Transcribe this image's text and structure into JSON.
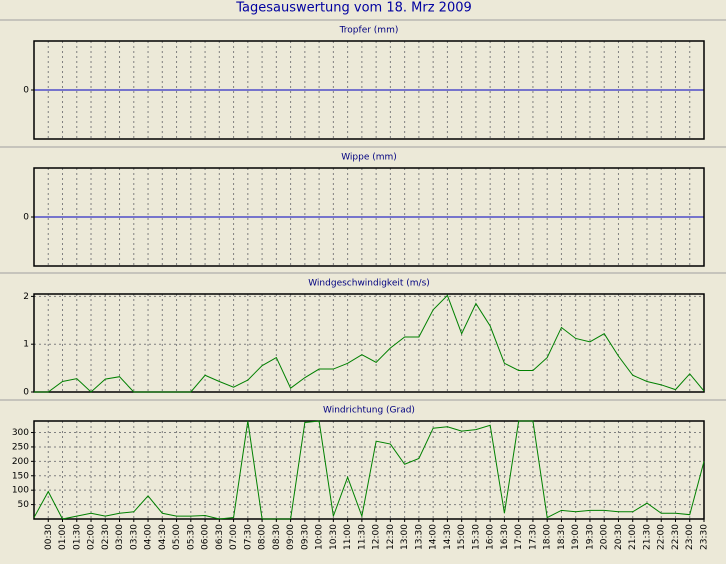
{
  "title": "Tagesauswertung vom 18. Mrz 2009",
  "chart_data": [
    {
      "type": "line",
      "title": "Tropfer (mm)",
      "xlim": [
        0,
        23.5
      ],
      "ylim": [
        -1,
        1
      ],
      "yticks": [
        0
      ],
      "zero_color": "#0000c0"
    },
    {
      "type": "line",
      "title": "Wippe (mm)",
      "xlim": [
        0,
        23.5
      ],
      "ylim": [
        -1,
        1
      ],
      "yticks": [
        0
      ],
      "zero_color": "#0000c0"
    },
    {
      "type": "line",
      "title": "Windgeschwindigkeit (m/s)",
      "xlim": [
        0,
        23.5
      ],
      "ylim": [
        0,
        2.05
      ],
      "yticks": [
        0,
        1,
        2
      ],
      "grid": true,
      "x": [
        0,
        0.5,
        1,
        1.5,
        2,
        2.5,
        3,
        3.5,
        4,
        4.5,
        5,
        5.5,
        6,
        6.5,
        7,
        7.5,
        8,
        8.5,
        9,
        9.5,
        10,
        10.5,
        11,
        11.5,
        12,
        12.5,
        13,
        13.5,
        14,
        14.5,
        15,
        15.5,
        16,
        16.5,
        17,
        17.5,
        18,
        18.5,
        19,
        19.5,
        20,
        20.5,
        21,
        21.5,
        22,
        22.5,
        23,
        23.5
      ],
      "series": [
        {
          "color": "#008000",
          "values": [
            0,
            0,
            0.22,
            0.28,
            0,
            0.27,
            0.32,
            0,
            0,
            0,
            0,
            0,
            0.35,
            0.22,
            0.1,
            0.25,
            0.55,
            0.72,
            0.08,
            0.3,
            0.48,
            0.48,
            0.6,
            0.78,
            0.62,
            0.92,
            1.15,
            1.15,
            1.72,
            2.02,
            1.22,
            1.85,
            1.38,
            0.6,
            0.45,
            0.45,
            0.72,
            1.35,
            1.12,
            1.05,
            1.22,
            0.75,
            0.35,
            0.22,
            0.15,
            0.05,
            0.38,
            0.02
          ]
        }
      ]
    },
    {
      "type": "line",
      "title": "Windrichtung (Grad)",
      "xlim": [
        0,
        23.5
      ],
      "ylim": [
        0,
        340
      ],
      "yticks": [
        50,
        100,
        150,
        200,
        250,
        300
      ],
      "grid": true,
      "x": [
        0,
        0.5,
        1,
        1.5,
        2,
        2.5,
        3,
        3.5,
        4,
        4.5,
        5,
        5.5,
        6,
        6.5,
        7,
        7.5,
        8,
        8.5,
        9,
        9.5,
        10,
        10.5,
        11,
        11.5,
        12,
        12.5,
        13,
        13.5,
        14,
        14.5,
        15,
        15.5,
        16,
        16.5,
        17,
        17.5,
        18,
        18.5,
        19,
        19.5,
        20,
        20.5,
        21,
        21.5,
        22,
        22.5,
        23,
        23.5
      ],
      "series": [
        {
          "color": "#008000",
          "values": [
            5,
            95,
            0,
            10,
            20,
            10,
            20,
            25,
            80,
            20,
            10,
            10,
            12,
            0,
            5,
            340,
            0,
            0,
            0,
            335,
            340,
            10,
            145,
            10,
            270,
            260,
            190,
            210,
            315,
            320,
            305,
            310,
            325,
            20,
            340,
            340,
            5,
            30,
            25,
            30,
            30,
            25,
            25,
            55,
            20,
            20,
            15,
            200
          ]
        }
      ],
      "xticks": [
        {
          "value": 0.5,
          "label": "00:30"
        },
        {
          "value": 1,
          "label": "01:00"
        },
        {
          "value": 1.5,
          "label": "01:30"
        },
        {
          "value": 2,
          "label": "02:00"
        },
        {
          "value": 2.5,
          "label": "02:30"
        },
        {
          "value": 3,
          "label": "03:00"
        },
        {
          "value": 3.5,
          "label": "03:30"
        },
        {
          "value": 4,
          "label": "04:00"
        },
        {
          "value": 4.5,
          "label": "04:30"
        },
        {
          "value": 5,
          "label": "05:00"
        },
        {
          "value": 5.5,
          "label": "05:30"
        },
        {
          "value": 6,
          "label": "06:00"
        },
        {
          "value": 6.5,
          "label": "06:30"
        },
        {
          "value": 7,
          "label": "07:00"
        },
        {
          "value": 7.5,
          "label": "07:30"
        },
        {
          "value": 8,
          "label": "08:00"
        },
        {
          "value": 8.5,
          "label": "08:30"
        },
        {
          "value": 9,
          "label": "09:00"
        },
        {
          "value": 9.5,
          "label": "09:30"
        },
        {
          "value": 10,
          "label": "10:00"
        },
        {
          "value": 10.5,
          "label": "10:30"
        },
        {
          "value": 11,
          "label": "11:00"
        },
        {
          "value": 11.5,
          "label": "11:30"
        },
        {
          "value": 12,
          "label": "12:00"
        },
        {
          "value": 12.5,
          "label": "12:30"
        },
        {
          "value": 13,
          "label": "13:00"
        },
        {
          "value": 13.5,
          "label": "13:30"
        },
        {
          "value": 14,
          "label": "14:00"
        },
        {
          "value": 14.5,
          "label": "14:30"
        },
        {
          "value": 15,
          "label": "15:00"
        },
        {
          "value": 15.5,
          "label": "15:30"
        },
        {
          "value": 16,
          "label": "16:00"
        },
        {
          "value": 16.5,
          "label": "16:30"
        },
        {
          "value": 17,
          "label": "17:00"
        },
        {
          "value": 17.5,
          "label": "17:30"
        },
        {
          "value": 18,
          "label": "18:00"
        },
        {
          "value": 18.5,
          "label": "18:30"
        },
        {
          "value": 19,
          "label": "19:00"
        },
        {
          "value": 19.5,
          "label": "19:30"
        },
        {
          "value": 20,
          "label": "20:00"
        },
        {
          "value": 20.5,
          "label": "20:30"
        },
        {
          "value": 21,
          "label": "21:00"
        },
        {
          "value": 21.5,
          "label": "21:30"
        },
        {
          "value": 22,
          "label": "22:00"
        },
        {
          "value": 22.5,
          "label": "22:30"
        },
        {
          "value": 23,
          "label": "23:00"
        },
        {
          "value": 23.5,
          "label": "23:30"
        }
      ]
    }
  ]
}
